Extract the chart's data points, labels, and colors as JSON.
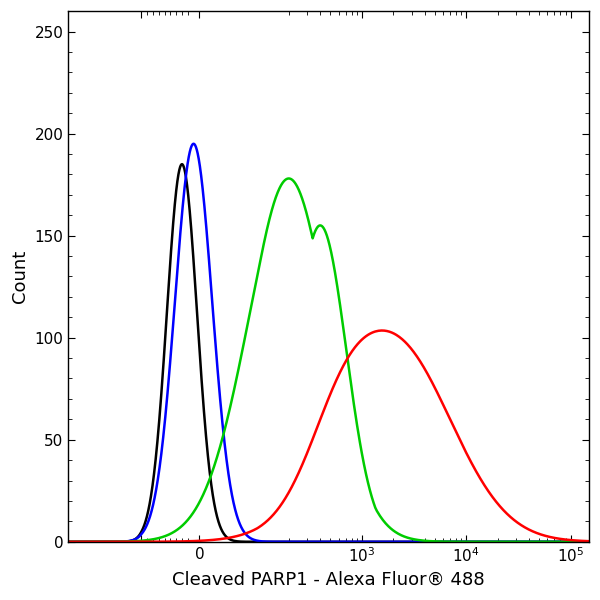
{
  "title": "",
  "xlabel": "Cleaved PARP1 - Alexa Fluor® 488",
  "ylabel": "Count",
  "ylim": [
    0,
    260
  ],
  "yticks": [
    0,
    50,
    100,
    150,
    200,
    250
  ],
  "background_color": "#ffffff",
  "plot_bg_color": "#ffffff",
  "xlabel_fontsize": 13,
  "ylabel_fontsize": 13,
  "linthresh": 100,
  "linscale": 0.5,
  "xlim_min": -500,
  "xlim_max": 150000,
  "black": {
    "color": "#000000",
    "peak_lin": -30,
    "peak_y": 185,
    "sigma_sl": 0.13,
    "lw": 1.8
  },
  "blue": {
    "color": "#0000ff",
    "peak_lin": -10,
    "peak_y": 195,
    "sigma_sl": 0.16,
    "lw": 1.8
  },
  "green": {
    "color": "#00cc00",
    "peak_lin": 200,
    "peak_y": 178,
    "sigma_sl": 0.38,
    "lw": 1.8,
    "shoulder_lin": 400,
    "shoulder_y": 155,
    "shoulder_sigma": 0.25
  },
  "red": {
    "color": "#ff0000",
    "peak_lin": 2000,
    "peak_y": 98,
    "sigma_sl": 0.55,
    "lw": 1.8,
    "shoulder_lin": 600,
    "shoulder_y": 32,
    "shoulder_sigma": 0.3
  }
}
